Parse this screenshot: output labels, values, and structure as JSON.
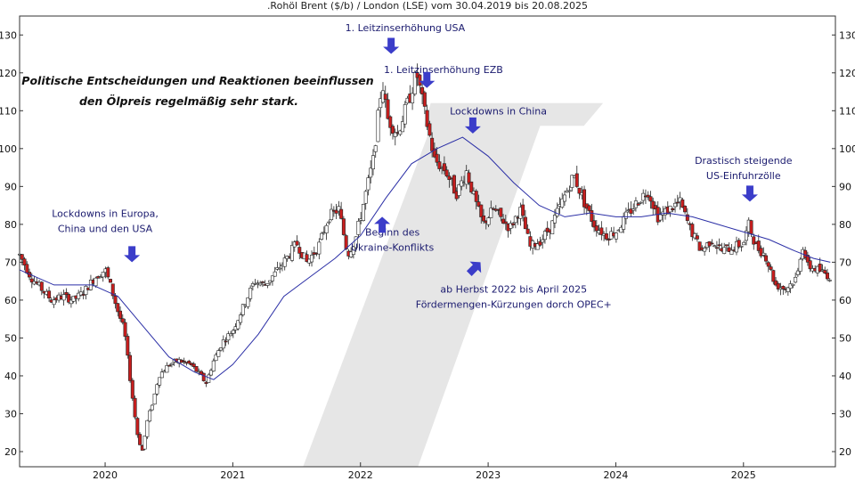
{
  "chart_data": {
    "type": "candlestick",
    "title": ".Rohöl Brent ($/b) / London (LSE) vom 30.04.2019 bis 20.08.2025",
    "headline": [
      "Politische Entscheidungen und Reaktionen beeinflussen",
      "den Ölpreis regelmäßig sehr stark."
    ],
    "ylim": [
      16,
      135
    ],
    "yticks": [
      20,
      30,
      40,
      50,
      60,
      70,
      80,
      90,
      100,
      110,
      120,
      130
    ],
    "xlim": [
      2019.33,
      2025.72
    ],
    "xticks": [
      {
        "value": 2020,
        "label": "2020"
      },
      {
        "value": 2021,
        "label": "2021"
      },
      {
        "value": 2022,
        "label": "2022"
      },
      {
        "value": 2023,
        "label": "2023"
      },
      {
        "value": 2024,
        "label": "2024"
      },
      {
        "value": 2025,
        "label": "2025"
      }
    ],
    "grid": false,
    "colors": {
      "up": "#ffffff",
      "down": "#c81e1e",
      "wick": "#222222",
      "moving_average": "#2b2fa6",
      "arrow": "#3b3dc9",
      "watermark": "#e6e6e6"
    },
    "price_series": [
      {
        "x": 2019.33,
        "y": 72
      },
      {
        "x": 2019.42,
        "y": 66
      },
      {
        "x": 2019.5,
        "y": 63
      },
      {
        "x": 2019.58,
        "y": 60
      },
      {
        "x": 2019.67,
        "y": 61
      },
      {
        "x": 2019.75,
        "y": 60
      },
      {
        "x": 2019.83,
        "y": 62
      },
      {
        "x": 2019.92,
        "y": 66
      },
      {
        "x": 2020.0,
        "y": 68
      },
      {
        "x": 2020.04,
        "y": 64
      },
      {
        "x": 2020.1,
        "y": 57
      },
      {
        "x": 2020.15,
        "y": 52
      },
      {
        "x": 2020.2,
        "y": 38
      },
      {
        "x": 2020.25,
        "y": 25
      },
      {
        "x": 2020.29,
        "y": 20
      },
      {
        "x": 2020.33,
        "y": 28
      },
      {
        "x": 2020.38,
        "y": 34
      },
      {
        "x": 2020.42,
        "y": 40
      },
      {
        "x": 2020.5,
        "y": 43
      },
      {
        "x": 2020.58,
        "y": 44
      },
      {
        "x": 2020.67,
        "y": 43
      },
      {
        "x": 2020.75,
        "y": 40
      },
      {
        "x": 2020.79,
        "y": 38
      },
      {
        "x": 2020.85,
        "y": 44
      },
      {
        "x": 2020.92,
        "y": 49
      },
      {
        "x": 2021.0,
        "y": 52
      },
      {
        "x": 2021.08,
        "y": 58
      },
      {
        "x": 2021.17,
        "y": 65
      },
      {
        "x": 2021.25,
        "y": 64
      },
      {
        "x": 2021.33,
        "y": 67
      },
      {
        "x": 2021.42,
        "y": 71
      },
      {
        "x": 2021.5,
        "y": 75
      },
      {
        "x": 2021.58,
        "y": 70
      },
      {
        "x": 2021.67,
        "y": 74
      },
      {
        "x": 2021.75,
        "y": 82
      },
      {
        "x": 2021.83,
        "y": 84
      },
      {
        "x": 2021.9,
        "y": 72
      },
      {
        "x": 2021.96,
        "y": 76
      },
      {
        "x": 2022.04,
        "y": 88
      },
      {
        "x": 2022.1,
        "y": 97
      },
      {
        "x": 2022.17,
        "y": 118
      },
      {
        "x": 2022.21,
        "y": 108
      },
      {
        "x": 2022.29,
        "y": 104
      },
      {
        "x": 2022.38,
        "y": 113
      },
      {
        "x": 2022.44,
        "y": 120
      },
      {
        "x": 2022.5,
        "y": 110
      },
      {
        "x": 2022.58,
        "y": 97
      },
      {
        "x": 2022.67,
        "y": 94
      },
      {
        "x": 2022.75,
        "y": 88
      },
      {
        "x": 2022.83,
        "y": 94
      },
      {
        "x": 2022.9,
        "y": 86
      },
      {
        "x": 2022.96,
        "y": 80
      },
      {
        "x": 2023.04,
        "y": 84
      },
      {
        "x": 2023.17,
        "y": 79
      },
      {
        "x": 2023.25,
        "y": 84
      },
      {
        "x": 2023.33,
        "y": 74
      },
      {
        "x": 2023.42,
        "y": 76
      },
      {
        "x": 2023.5,
        "y": 80
      },
      {
        "x": 2023.58,
        "y": 86
      },
      {
        "x": 2023.67,
        "y": 93
      },
      {
        "x": 2023.75,
        "y": 86
      },
      {
        "x": 2023.83,
        "y": 80
      },
      {
        "x": 2023.92,
        "y": 77
      },
      {
        "x": 2024.0,
        "y": 78
      },
      {
        "x": 2024.08,
        "y": 82
      },
      {
        "x": 2024.17,
        "y": 86
      },
      {
        "x": 2024.25,
        "y": 89
      },
      {
        "x": 2024.33,
        "y": 82
      },
      {
        "x": 2024.42,
        "y": 84
      },
      {
        "x": 2024.5,
        "y": 86
      },
      {
        "x": 2024.58,
        "y": 79
      },
      {
        "x": 2024.67,
        "y": 73
      },
      {
        "x": 2024.75,
        "y": 76
      },
      {
        "x": 2024.83,
        "y": 73
      },
      {
        "x": 2024.92,
        "y": 74
      },
      {
        "x": 2025.0,
        "y": 75
      },
      {
        "x": 2025.04,
        "y": 80
      },
      {
        "x": 2025.1,
        "y": 74
      },
      {
        "x": 2025.17,
        "y": 72
      },
      {
        "x": 2025.25,
        "y": 64
      },
      {
        "x": 2025.33,
        "y": 63
      },
      {
        "x": 2025.42,
        "y": 66
      },
      {
        "x": 2025.46,
        "y": 75
      },
      {
        "x": 2025.5,
        "y": 69
      },
      {
        "x": 2025.58,
        "y": 68
      },
      {
        "x": 2025.64,
        "y": 67
      },
      {
        "x": 2025.68,
        "y": 66
      }
    ],
    "moving_average": [
      {
        "x": 2019.33,
        "y": 68
      },
      {
        "x": 2019.6,
        "y": 64
      },
      {
        "x": 2019.9,
        "y": 64
      },
      {
        "x": 2020.1,
        "y": 61
      },
      {
        "x": 2020.3,
        "y": 53
      },
      {
        "x": 2020.5,
        "y": 45
      },
      {
        "x": 2020.7,
        "y": 41
      },
      {
        "x": 2020.85,
        "y": 39
      },
      {
        "x": 2021.0,
        "y": 43
      },
      {
        "x": 2021.2,
        "y": 51
      },
      {
        "x": 2021.4,
        "y": 61
      },
      {
        "x": 2021.6,
        "y": 66
      },
      {
        "x": 2021.8,
        "y": 71
      },
      {
        "x": 2022.0,
        "y": 77
      },
      {
        "x": 2022.2,
        "y": 87
      },
      {
        "x": 2022.4,
        "y": 96
      },
      {
        "x": 2022.6,
        "y": 100
      },
      {
        "x": 2022.8,
        "y": 103
      },
      {
        "x": 2023.0,
        "y": 98
      },
      {
        "x": 2023.2,
        "y": 91
      },
      {
        "x": 2023.4,
        "y": 85
      },
      {
        "x": 2023.6,
        "y": 82
      },
      {
        "x": 2023.8,
        "y": 83
      },
      {
        "x": 2024.0,
        "y": 82
      },
      {
        "x": 2024.2,
        "y": 82
      },
      {
        "x": 2024.4,
        "y": 83
      },
      {
        "x": 2024.6,
        "y": 82
      },
      {
        "x": 2024.8,
        "y": 80
      },
      {
        "x": 2025.0,
        "y": 78
      },
      {
        "x": 2025.2,
        "y": 76
      },
      {
        "x": 2025.4,
        "y": 73
      },
      {
        "x": 2025.55,
        "y": 71
      },
      {
        "x": 2025.68,
        "y": 70
      }
    ],
    "annotations": [
      {
        "lines": [
          "1. Leitzinserhöhung USA"
        ],
        "anchor": {
          "x": 2022.35,
          "y": 131
        },
        "arrow": {
          "x": 2022.24,
          "y": 125,
          "dir": "down"
        },
        "text_anchor": "middle"
      },
      {
        "lines": [
          "1. Leitzinserhöhung EZB"
        ],
        "anchor": {
          "x": 2022.65,
          "y": 120
        },
        "arrow": {
          "x": 2022.52,
          "y": 116,
          "dir": "down"
        },
        "text_anchor": "middle"
      },
      {
        "lines": [
          "Lockdowns in China"
        ],
        "anchor": {
          "x": 2023.08,
          "y": 109
        },
        "arrow": {
          "x": 2022.88,
          "y": 104,
          "dir": "down"
        },
        "text_anchor": "middle"
      },
      {
        "lines": [
          "Lockdowns in Europa,",
          "China und den USA"
        ],
        "anchor": {
          "x": 2020.0,
          "y": 82
        },
        "arrow": {
          "x": 2020.21,
          "y": 70,
          "dir": "down"
        },
        "text_anchor": "middle"
      },
      {
        "lines": [
          "Beginn des",
          "Ukraine-Konflikts"
        ],
        "anchor": {
          "x": 2022.25,
          "y": 77
        },
        "arrow": {
          "x": 2022.17,
          "y": 82,
          "dir": "up"
        },
        "text_anchor": "middle"
      },
      {
        "lines": [
          "ab Herbst 2022 bis April 2025",
          "Fördermengen-Kürzungen dorch OPEC+"
        ],
        "anchor": {
          "x": 2023.2,
          "y": 62
        },
        "arrow": {
          "x": 2022.94,
          "y": 70,
          "dir": "up-right"
        },
        "text_anchor": "middle"
      },
      {
        "lines": [
          "Drastisch steigende",
          "US-Einfuhrzölle"
        ],
        "anchor": {
          "x": 2025.0,
          "y": 96
        },
        "arrow": {
          "x": 2025.05,
          "y": 86,
          "dir": "down"
        },
        "text_anchor": "middle"
      }
    ]
  }
}
